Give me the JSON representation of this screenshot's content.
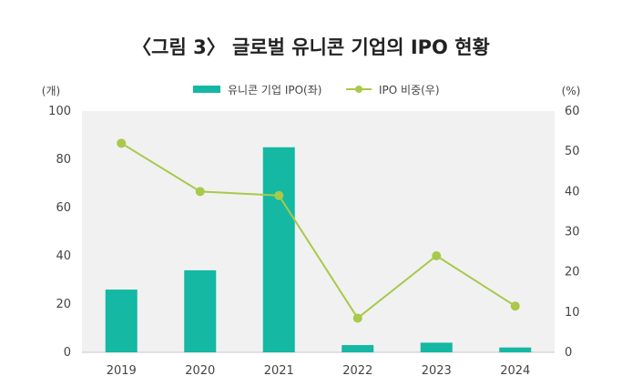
{
  "chart_data": {
    "type": "bar",
    "title": "〈그림 3〉 글로벌 유니콘 기업의 IPO 현황",
    "categories": [
      "2019",
      "2020",
      "2021",
      "2022",
      "2023",
      "2024"
    ],
    "series": [
      {
        "name": "유니콘 기업 IPO(좌)",
        "type": "bar",
        "axis": "left",
        "values": [
          26,
          34,
          85,
          3,
          4,
          2
        ],
        "color": "#14b8a3"
      },
      {
        "name": "IPO 비중(우)",
        "type": "line",
        "axis": "right",
        "values": [
          52,
          40,
          39,
          8.5,
          24,
          11.5
        ],
        "color": "#a8c94a"
      }
    ],
    "y_left": {
      "unit": "(개)",
      "min": 0,
      "max": 100,
      "ticks": [
        0,
        20,
        40,
        60,
        80,
        100
      ]
    },
    "y_right": {
      "unit": "(%)",
      "min": 0,
      "max": 60,
      "ticks": [
        0,
        10,
        20,
        30,
        40,
        50,
        60
      ]
    },
    "grid": false,
    "legend_position": "top-center"
  }
}
